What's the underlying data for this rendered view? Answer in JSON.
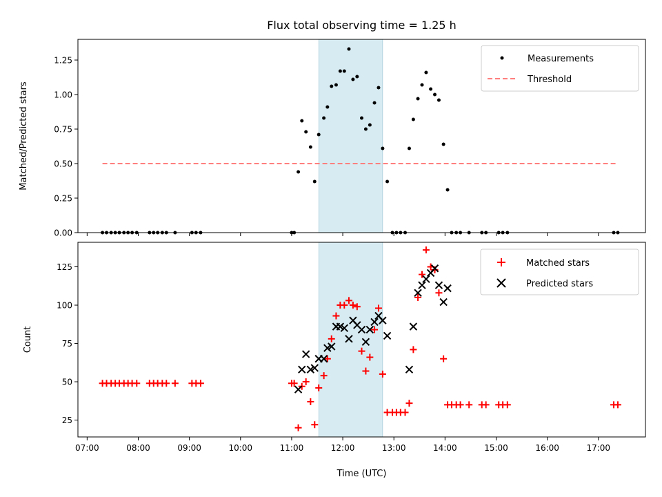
{
  "chart_data": {
    "title": "Flux total observing time = 1.25 h",
    "xlabel": "Time (UTC)",
    "x_unit": "hour",
    "xlim": [
      6.82,
      17.92
    ],
    "x_ticks": [
      7,
      8,
      9,
      10,
      11,
      12,
      13,
      14,
      15,
      16,
      17
    ],
    "x_tick_labels": [
      "07:00",
      "08:00",
      "09:00",
      "10:00",
      "11:00",
      "12:00",
      "13:00",
      "14:00",
      "15:00",
      "16:00",
      "17:00"
    ],
    "highlight_span": [
      11.53,
      12.78
    ],
    "highlight_color": "#add8e6",
    "panels": [
      {
        "type": "scatter",
        "ylabel": "Matched/Predicted stars",
        "ylim": [
          0,
          1.4
        ],
        "y_ticks": [
          0,
          0.25,
          0.5,
          0.75,
          1.0,
          1.25
        ],
        "y_tick_labels": [
          "0.00",
          "0.25",
          "0.50",
          "0.75",
          "1.00",
          "1.25"
        ],
        "legend_position": "upper right",
        "series": [
          {
            "name": "Measurements",
            "marker": "dot",
            "color": "#000000",
            "points": [
              [
                7.3,
                0
              ],
              [
                7.38,
                0
              ],
              [
                7.47,
                0
              ],
              [
                7.55,
                0
              ],
              [
                7.63,
                0
              ],
              [
                7.72,
                0
              ],
              [
                7.8,
                0
              ],
              [
                7.88,
                0
              ],
              [
                7.97,
                0
              ],
              [
                8.22,
                0
              ],
              [
                8.3,
                0
              ],
              [
                8.38,
                0
              ],
              [
                8.47,
                0
              ],
              [
                8.55,
                0
              ],
              [
                8.72,
                0
              ],
              [
                9.05,
                0
              ],
              [
                9.13,
                0
              ],
              [
                9.22,
                0
              ],
              [
                11.0,
                0
              ],
              [
                11.05,
                0
              ],
              [
                11.13,
                0.44
              ],
              [
                11.2,
                0.81
              ],
              [
                11.28,
                0.73
              ],
              [
                11.37,
                0.62
              ],
              [
                11.45,
                0.37
              ],
              [
                11.53,
                0.71
              ],
              [
                11.63,
                0.83
              ],
              [
                11.7,
                0.91
              ],
              [
                11.78,
                1.06
              ],
              [
                11.87,
                1.07
              ],
              [
                11.95,
                1.17
              ],
              [
                12.03,
                1.17
              ],
              [
                12.12,
                1.33
              ],
              [
                12.2,
                1.11
              ],
              [
                12.28,
                1.13
              ],
              [
                12.37,
                0.83
              ],
              [
                12.45,
                0.75
              ],
              [
                12.53,
                0.78
              ],
              [
                12.62,
                0.94
              ],
              [
                12.7,
                1.05
              ],
              [
                12.78,
                0.61
              ],
              [
                12.87,
                0.37
              ],
              [
                12.97,
                0
              ],
              [
                13.05,
                0
              ],
              [
                13.13,
                0
              ],
              [
                13.22,
                0
              ],
              [
                13.3,
                0.61
              ],
              [
                13.38,
                0.82
              ],
              [
                13.47,
                0.97
              ],
              [
                13.55,
                1.07
              ],
              [
                13.63,
                1.16
              ],
              [
                13.72,
                1.04
              ],
              [
                13.8,
                1.0
              ],
              [
                13.88,
                0.96
              ],
              [
                13.97,
                0.64
              ],
              [
                14.05,
                0.31
              ],
              [
                14.13,
                0
              ],
              [
                14.22,
                0
              ],
              [
                14.3,
                0
              ],
              [
                14.47,
                0
              ],
              [
                14.72,
                0
              ],
              [
                14.8,
                0
              ],
              [
                15.05,
                0
              ],
              [
                15.13,
                0
              ],
              [
                15.22,
                0
              ],
              [
                17.3,
                0
              ],
              [
                17.38,
                0
              ]
            ]
          },
          {
            "name": "Threshold",
            "marker": "dashed-line",
            "color": "#ff7f7f",
            "points": [
              [
                7.3,
                0.5
              ],
              [
                17.38,
                0.5
              ]
            ]
          }
        ]
      },
      {
        "type": "scatter",
        "ylabel": "Count",
        "ylim": [
          14,
          141
        ],
        "y_ticks": [
          25,
          50,
          75,
          100,
          125
        ],
        "y_tick_labels": [
          "25",
          "50",
          "75",
          "100",
          "125"
        ],
        "legend_position": "upper right",
        "series": [
          {
            "name": "Matched stars",
            "marker": "plus",
            "color": "#ff0000",
            "points": [
              [
                7.3,
                49
              ],
              [
                7.38,
                49
              ],
              [
                7.47,
                49
              ],
              [
                7.55,
                49
              ],
              [
                7.63,
                49
              ],
              [
                7.72,
                49
              ],
              [
                7.8,
                49
              ],
              [
                7.88,
                49
              ],
              [
                7.97,
                49
              ],
              [
                8.22,
                49
              ],
              [
                8.3,
                49
              ],
              [
                8.38,
                49
              ],
              [
                8.47,
                49
              ],
              [
                8.55,
                49
              ],
              [
                8.72,
                49
              ],
              [
                9.05,
                49
              ],
              [
                9.13,
                49
              ],
              [
                9.22,
                49
              ],
              [
                11.0,
                49
              ],
              [
                11.05,
                49
              ],
              [
                11.13,
                20
              ],
              [
                11.2,
                47
              ],
              [
                11.28,
                50
              ],
              [
                11.37,
                37
              ],
              [
                11.45,
                22
              ],
              [
                11.53,
                46
              ],
              [
                11.63,
                54
              ],
              [
                11.7,
                65
              ],
              [
                11.78,
                78
              ],
              [
                11.87,
                93
              ],
              [
                11.95,
                100
              ],
              [
                12.03,
                100
              ],
              [
                12.12,
                103
              ],
              [
                12.2,
                100
              ],
              [
                12.28,
                99
              ],
              [
                12.37,
                70
              ],
              [
                12.45,
                57
              ],
              [
                12.53,
                66
              ],
              [
                12.62,
                84
              ],
              [
                12.7,
                98
              ],
              [
                12.78,
                55
              ],
              [
                12.87,
                30
              ],
              [
                12.97,
                30
              ],
              [
                13.05,
                30
              ],
              [
                13.13,
                30
              ],
              [
                13.22,
                30
              ],
              [
                13.3,
                36
              ],
              [
                13.38,
                71
              ],
              [
                13.47,
                105
              ],
              [
                13.55,
                120
              ],
              [
                13.63,
                136
              ],
              [
                13.72,
                125
              ],
              [
                13.8,
                123
              ],
              [
                13.88,
                108
              ],
              [
                13.97,
                65
              ],
              [
                14.05,
                35
              ],
              [
                14.13,
                35
              ],
              [
                14.22,
                35
              ],
              [
                14.3,
                35
              ],
              [
                14.47,
                35
              ],
              [
                14.72,
                35
              ],
              [
                14.8,
                35
              ],
              [
                15.05,
                35
              ],
              [
                15.13,
                35
              ],
              [
                15.22,
                35
              ],
              [
                17.3,
                35
              ],
              [
                17.38,
                35
              ]
            ]
          },
          {
            "name": "Predicted stars",
            "marker": "x",
            "color": "#000000",
            "points": [
              [
                11.13,
                45
              ],
              [
                11.2,
                58
              ],
              [
                11.28,
                68
              ],
              [
                11.37,
                58
              ],
              [
                11.45,
                59
              ],
              [
                11.53,
                65
              ],
              [
                11.63,
                65
              ],
              [
                11.7,
                72
              ],
              [
                11.78,
                73
              ],
              [
                11.87,
                86
              ],
              [
                11.95,
                86
              ],
              [
                12.03,
                85
              ],
              [
                12.12,
                78
              ],
              [
                12.2,
                90
              ],
              [
                12.28,
                87
              ],
              [
                12.37,
                84
              ],
              [
                12.45,
                76
              ],
              [
                12.53,
                84
              ],
              [
                12.62,
                89
              ],
              [
                12.7,
                93
              ],
              [
                12.78,
                90
              ],
              [
                12.87,
                80
              ],
              [
                13.3,
                58
              ],
              [
                13.38,
                86
              ],
              [
                13.47,
                108
              ],
              [
                13.55,
                113
              ],
              [
                13.63,
                117
              ],
              [
                13.72,
                121
              ],
              [
                13.8,
                124
              ],
              [
                13.88,
                113
              ],
              [
                13.97,
                102
              ],
              [
                14.05,
                111
              ]
            ]
          }
        ]
      }
    ]
  }
}
